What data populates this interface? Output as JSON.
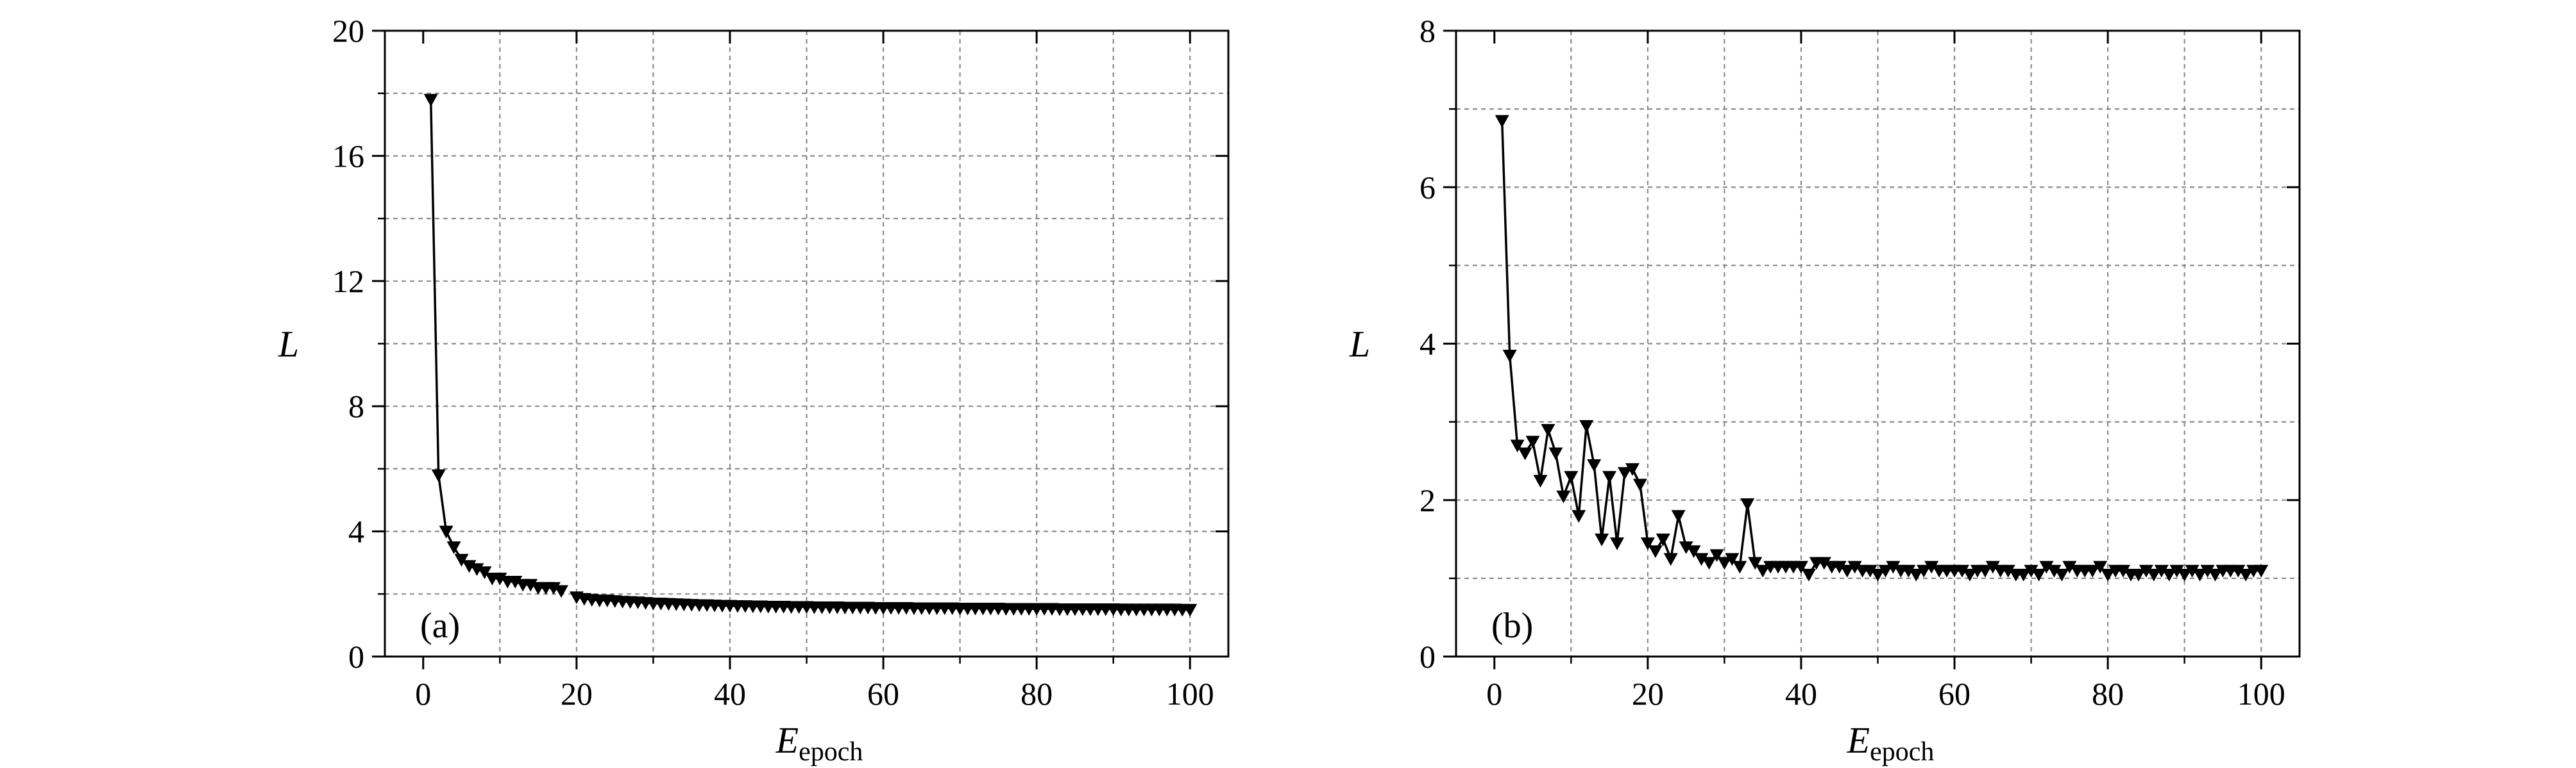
{
  "chart_data": [
    {
      "type": "line",
      "panel_label": "(a)",
      "xlabel_main": "E",
      "xlabel_sub": "epoch",
      "ylabel": "L",
      "xlim": [
        -5,
        105
      ],
      "ylim": [
        0,
        20
      ],
      "xticks": [
        0,
        20,
        40,
        60,
        80,
        100
      ],
      "yticks": [
        0,
        4,
        8,
        12,
        16,
        20
      ],
      "grid": true,
      "marker": "down-triangle",
      "series": [
        {
          "x": [
            1,
            2,
            3,
            4,
            5,
            6,
            7,
            8,
            9,
            10,
            11,
            12,
            13,
            14,
            15,
            16,
            17,
            18,
            19,
            20,
            21,
            22,
            23,
            24,
            25,
            26,
            27,
            28,
            29,
            30,
            31,
            32,
            33,
            34,
            35,
            36,
            37,
            38,
            39,
            40,
            41,
            42,
            43,
            44,
            45,
            46,
            47,
            48,
            49,
            50,
            51,
            52,
            53,
            54,
            55,
            56,
            57,
            58,
            59,
            60,
            61,
            62,
            63,
            64,
            65,
            66,
            67,
            68,
            69,
            70,
            71,
            72,
            73,
            74,
            75,
            76,
            77,
            78,
            79,
            80,
            81,
            82,
            83,
            84,
            85,
            86,
            87,
            88,
            89,
            90,
            91,
            92,
            93,
            94,
            95,
            96,
            97,
            98,
            99,
            100
          ],
          "values": [
            17.8,
            5.8,
            4.0,
            3.5,
            3.1,
            2.9,
            2.8,
            2.7,
            2.5,
            2.5,
            2.4,
            2.4,
            2.3,
            2.3,
            2.2,
            2.2,
            2.2,
            2.1,
            null,
            1.9,
            1.85,
            1.82,
            1.8,
            1.8,
            1.78,
            1.76,
            1.75,
            1.74,
            1.72,
            1.7,
            1.7,
            1.69,
            1.68,
            1.67,
            1.66,
            1.65,
            1.65,
            1.64,
            1.63,
            1.63,
            1.62,
            1.62,
            1.61,
            1.61,
            1.6,
            1.6,
            1.6,
            1.59,
            1.59,
            1.59,
            1.58,
            1.58,
            1.58,
            1.58,
            1.57,
            1.57,
            1.57,
            1.57,
            1.56,
            1.56,
            1.56,
            1.56,
            1.56,
            1.55,
            1.55,
            1.55,
            1.55,
            1.55,
            1.55,
            1.54,
            1.54,
            1.54,
            1.54,
            1.54,
            1.54,
            1.53,
            1.53,
            1.53,
            1.53,
            1.53,
            1.53,
            1.53,
            1.52,
            1.52,
            1.52,
            1.52,
            1.52,
            1.52,
            1.52,
            1.52,
            1.51,
            1.51,
            1.51,
            1.51,
            1.51,
            1.51,
            1.51,
            1.51,
            1.5,
            1.5
          ]
        }
      ]
    },
    {
      "type": "line",
      "panel_label": "(b)",
      "xlabel_main": "E",
      "xlabel_sub": "epoch",
      "ylabel": "L",
      "xlim": [
        -5,
        105
      ],
      "ylim": [
        0,
        8
      ],
      "xticks": [
        0,
        20,
        40,
        60,
        80,
        100
      ],
      "yticks": [
        0,
        2,
        4,
        6,
        8
      ],
      "grid": true,
      "marker": "down-triangle",
      "series": [
        {
          "x": [
            1,
            2,
            3,
            4,
            5,
            6,
            7,
            8,
            9,
            10,
            11,
            12,
            13,
            14,
            15,
            16,
            17,
            18,
            19,
            20,
            21,
            22,
            23,
            24,
            25,
            26,
            27,
            28,
            29,
            30,
            31,
            32,
            33,
            34,
            35,
            36,
            37,
            38,
            39,
            40,
            41,
            42,
            43,
            44,
            45,
            46,
            47,
            48,
            49,
            50,
            51,
            52,
            53,
            54,
            55,
            56,
            57,
            58,
            59,
            60,
            61,
            62,
            63,
            64,
            65,
            66,
            67,
            68,
            69,
            70,
            71,
            72,
            73,
            74,
            75,
            76,
            77,
            78,
            79,
            80,
            81,
            82,
            83,
            84,
            85,
            86,
            87,
            88,
            89,
            90,
            91,
            92,
            93,
            94,
            95,
            96,
            97,
            98,
            99,
            100
          ],
          "values": [
            6.85,
            3.85,
            2.7,
            2.6,
            2.75,
            2.25,
            2.9,
            2.6,
            2.05,
            2.3,
            1.8,
            2.95,
            2.45,
            1.5,
            2.3,
            1.45,
            2.35,
            2.4,
            2.2,
            1.45,
            1.35,
            1.5,
            1.25,
            1.8,
            1.4,
            1.35,
            1.25,
            1.2,
            1.3,
            1.2,
            1.25,
            1.15,
            1.95,
            1.2,
            1.1,
            1.15,
            1.15,
            1.15,
            1.15,
            1.15,
            1.05,
            1.2,
            1.2,
            1.15,
            1.15,
            1.1,
            1.15,
            1.1,
            1.1,
            1.05,
            1.1,
            1.15,
            1.1,
            1.1,
            1.05,
            1.1,
            1.15,
            1.1,
            1.1,
            1.1,
            1.1,
            1.05,
            1.1,
            1.1,
            1.15,
            1.1,
            1.1,
            1.05,
            1.05,
            1.1,
            1.05,
            1.15,
            1.1,
            1.05,
            1.15,
            1.1,
            1.1,
            1.1,
            1.15,
            1.05,
            1.1,
            1.1,
            1.05,
            1.05,
            1.1,
            1.05,
            1.1,
            1.05,
            1.1,
            1.05,
            1.1,
            1.05,
            1.1,
            1.05,
            1.1,
            1.1,
            1.1,
            1.05,
            1.1,
            1.1
          ]
        }
      ]
    }
  ]
}
